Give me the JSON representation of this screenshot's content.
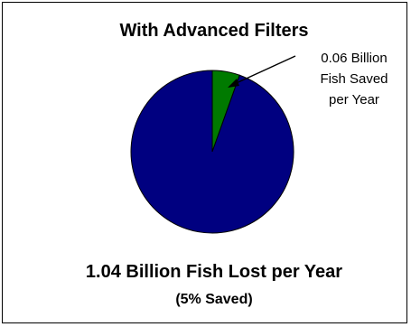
{
  "chart_data": {
    "type": "pie",
    "title": "With Advanced Filters",
    "slices": [
      {
        "name": "Fish Saved per Year",
        "value": 0.06,
        "unit": "Billion",
        "color": "#007a00"
      },
      {
        "name": "Fish Lost per Year",
        "value": 1.04,
        "unit": "Billion",
        "color": "#000080"
      }
    ],
    "annotations": {
      "saved_lines": [
        "0.06 Billion",
        "Fish Saved",
        "per Year"
      ],
      "lost_label": "1.04 Billion Fish Lost per Year",
      "percent_label": "(5% Saved)"
    },
    "legend": "none"
  }
}
